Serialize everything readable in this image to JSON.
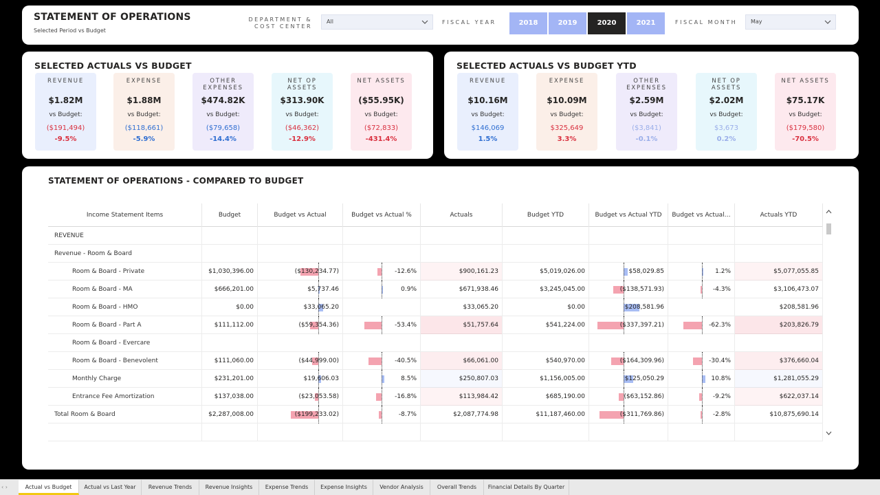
{
  "header": {
    "title": "STATEMENT OF OPERATIONS",
    "subtitle": "Selected Period  vs Budget",
    "dept_label_1": "DEPARTMENT &",
    "dept_label_2": "COST CENTER",
    "dept_value": "All",
    "fiscal_year_label": "FISCAL YEAR",
    "years": [
      "2018",
      "2019",
      "2020",
      "2021"
    ],
    "selected_year": "2020",
    "fiscal_month_label": "FISCAL MONTH",
    "month_value": "May"
  },
  "actuals_vs_budget": {
    "title": "SELECTED ACTUALS VS BUDGET",
    "vs_budget_label": "vs Budget:",
    "kpis": [
      {
        "label": "REVENUE",
        "value": "$1.82M",
        "variance": "($191,494)",
        "pct": "-9.5%",
        "tone": "neg"
      },
      {
        "label": "EXPENSE",
        "value": "$1.88M",
        "variance": "($118,661)",
        "pct": "-5.9%",
        "tone": "pos"
      },
      {
        "label": "OTHER EXPENSES",
        "value": "$474.82K",
        "variance": "($79,658)",
        "pct": "-14.4%",
        "tone": "pos"
      },
      {
        "label": "NET OP ASSETS",
        "value": "$313.90K",
        "variance": "($46,362)",
        "pct": "-12.9%",
        "tone": "neg"
      },
      {
        "label": "NET ASSETS",
        "value": "($55.95K)",
        "variance": "($72,833)",
        "pct": "-431.4%",
        "tone": "neg"
      }
    ]
  },
  "actuals_vs_budget_ytd": {
    "title": "SELECTED ACTUALS VS BUDGET YTD",
    "vs_budget_label": "vs Budget:",
    "kpis": [
      {
        "label": "REVENUE",
        "value": "$10.16M",
        "variance": "$146,069",
        "pct": "1.5%",
        "tone": "pos"
      },
      {
        "label": "EXPENSE",
        "value": "$10.09M",
        "variance": "$325,649",
        "pct": "3.3%",
        "tone": "neg"
      },
      {
        "label": "OTHER EXPENSES",
        "value": "$2.59M",
        "variance": "($3,841)",
        "pct": "-0.1%",
        "tone": "pos-light"
      },
      {
        "label": "NET OP ASSETS",
        "value": "$2.02M",
        "variance": "$3,673",
        "pct": "0.2%",
        "tone": "pos-light"
      },
      {
        "label": "NET ASSETS",
        "value": "$75.17K",
        "variance": "($179,580)",
        "pct": "-70.5%",
        "tone": "neg"
      }
    ]
  },
  "table": {
    "title": "STATEMENT OF OPERATIONS - COMPARED TO BUDGET",
    "columns": [
      "Income Statement Items",
      "Budget",
      "Budget vs Actual",
      "Budget vs Actual %",
      "Actuals",
      "Budget YTD",
      "Budget vs Actual YTD",
      "Budget vs Actual…",
      "Actuals YTD"
    ],
    "rows": [
      {
        "item": "REVENUE",
        "level": 0,
        "budget": "",
        "bva": "",
        "bva_pct": "",
        "actuals": "",
        "budget_ytd": "",
        "bva_ytd": "",
        "bva_ytd_pct": "",
        "actuals_ytd": "",
        "bva_v": 0,
        "bva_pct_v": 0,
        "bva_ytd_v": 0,
        "bva_ytd_pct_v": 0,
        "shade": 0
      },
      {
        "item": "Revenue - Room & Board",
        "level": 0,
        "budget": "",
        "bva": "",
        "bva_pct": "",
        "actuals": "",
        "budget_ytd": "",
        "bva_ytd": "",
        "bva_ytd_pct": "",
        "actuals_ytd": "",
        "bva_v": 0,
        "bva_pct_v": 0,
        "bva_ytd_v": 0,
        "bva_ytd_pct_v": 0,
        "shade": 0
      },
      {
        "item": "Room & Board - Private",
        "level": 1,
        "budget": "$1,030,396.00",
        "bva": "($130,234.77)",
        "bva_pct": "-12.6%",
        "actuals": "$900,161.23",
        "budget_ytd": "$5,019,026.00",
        "bva_ytd": "$58,029.85",
        "bva_ytd_pct": "1.2%",
        "actuals_ytd": "$5,077,055.85",
        "bva_v": -130234.77,
        "bva_pct_v": -12.6,
        "bva_ytd_v": 58029.85,
        "bva_ytd_pct_v": 1.2,
        "shade": -1
      },
      {
        "item": "Room & Board - MA",
        "level": 1,
        "budget": "$666,201.00",
        "bva": "$5,737.46",
        "bva_pct": "0.9%",
        "actuals": "$671,938.46",
        "budget_ytd": "$3,245,045.00",
        "bva_ytd": "($138,571.93)",
        "bva_ytd_pct": "-4.3%",
        "actuals_ytd": "$3,106,473.07",
        "bva_v": 5737.46,
        "bva_pct_v": 0.9,
        "bva_ytd_v": -138571.93,
        "bva_ytd_pct_v": -4.3,
        "shade": 0
      },
      {
        "item": "Room & Board - HMO",
        "level": 1,
        "budget": "$0.00",
        "bva": "$33,065.20",
        "bva_pct": "",
        "actuals": "$33,065.20",
        "budget_ytd": "$0.00",
        "bva_ytd": "$208,581.96",
        "bva_ytd_pct": "",
        "actuals_ytd": "$208,581.96",
        "bva_v": 33065.2,
        "bva_pct_v": 0,
        "bva_ytd_v": 208581.96,
        "bva_ytd_pct_v": 0,
        "shade": 0
      },
      {
        "item": "Room & Board - Part A",
        "level": 1,
        "budget": "$111,112.00",
        "bva": "($59,354.36)",
        "bva_pct": "-53.4%",
        "actuals": "$51,757.64",
        "budget_ytd": "$541,224.00",
        "bva_ytd": "($337,397.21)",
        "bva_ytd_pct": "-62.3%",
        "actuals_ytd": "$203,826.79",
        "bva_v": -59354.36,
        "bva_pct_v": -53.4,
        "bva_ytd_v": -337397.21,
        "bva_ytd_pct_v": -62.3,
        "shade": -3
      },
      {
        "item": "Room & Board - Evercare",
        "level": 1,
        "budget": "",
        "bva": "",
        "bva_pct": "",
        "actuals": "",
        "budget_ytd": "",
        "bva_ytd": "",
        "bva_ytd_pct": "",
        "actuals_ytd": "",
        "bva_v": 0,
        "bva_pct_v": 0,
        "bva_ytd_v": 0,
        "bva_ytd_pct_v": 0,
        "shade": 0
      },
      {
        "item": "Room & Board - Benevolent",
        "level": 1,
        "budget": "$111,060.00",
        "bva": "($44,999.00)",
        "bva_pct": "-40.5%",
        "actuals": "$66,061.00",
        "budget_ytd": "$540,970.00",
        "bva_ytd": "($164,309.96)",
        "bva_ytd_pct": "-30.4%",
        "actuals_ytd": "$376,660.04",
        "bva_v": -44999,
        "bva_pct_v": -40.5,
        "bva_ytd_v": -164309.96,
        "bva_ytd_pct_v": -30.4,
        "shade": -2
      },
      {
        "item": "Monthly Charge",
        "level": 1,
        "budget": "$231,201.00",
        "bva": "$19,606.03",
        "bva_pct": "8.5%",
        "actuals": "$250,807.03",
        "budget_ytd": "$1,156,005.00",
        "bva_ytd": "$125,050.29",
        "bva_ytd_pct": "10.8%",
        "actuals_ytd": "$1,281,055.29",
        "bva_v": 19606.03,
        "bva_pct_v": 8.5,
        "bva_ytd_v": 125050.29,
        "bva_ytd_pct_v": 10.8,
        "shade": 1
      },
      {
        "item": "Entrance Fee Amortization",
        "level": 1,
        "budget": "$137,038.00",
        "bva": "($23,053.58)",
        "bva_pct": "-16.8%",
        "actuals": "$113,984.42",
        "budget_ytd": "$685,190.00",
        "bva_ytd": "($63,152.86)",
        "bva_ytd_pct": "-9.2%",
        "actuals_ytd": "$622,037.14",
        "bva_v": -23053.58,
        "bva_pct_v": -16.8,
        "bva_ytd_v": -63152.86,
        "bva_ytd_pct_v": -9.2,
        "shade": -1
      },
      {
        "item": "Total Room & Board",
        "level": 0,
        "budget": "$2,287,008.00",
        "bva": "($199,233.02)",
        "bva_pct": "-8.7%",
        "actuals": "$2,087,774.98",
        "budget_ytd": "$11,187,460.00",
        "bva_ytd": "($311,769.86)",
        "bva_ytd_pct": "-2.8%",
        "actuals_ytd": "$10,875,690.14",
        "bva_v": -199233.02,
        "bva_pct_v": -8.7,
        "bva_ytd_v": -311769.86,
        "bva_ytd_pct_v": -2.8,
        "shade": 0
      },
      {
        "item": "",
        "level": 0,
        "budget": "",
        "bva": "",
        "bva_pct": "",
        "actuals": "",
        "budget_ytd": "",
        "bva_ytd": "",
        "bva_ytd_pct": "",
        "actuals_ytd": "",
        "bva_v": 0,
        "bva_pct_v": 0,
        "bva_ytd_v": 0,
        "bva_ytd_pct_v": 0,
        "shade": 0
      }
    ]
  },
  "tabs": [
    "Actual vs Budget",
    "Actual vs Last Year",
    "Revenue Trends",
    "Revenue Insights",
    "Expense Trends",
    "Expense Insights",
    "Vendor Analysis",
    "Overall Trends",
    "Financial Details By Quarter"
  ],
  "active_tab": "Actual vs Budget",
  "colors": {
    "negative": "#d9303f",
    "positive": "#2f6ed1",
    "bar_negative": "#f4a3b0",
    "bar_positive": "#a8bdf4",
    "selected_year": "#252423",
    "year": "#a3b5f5"
  }
}
